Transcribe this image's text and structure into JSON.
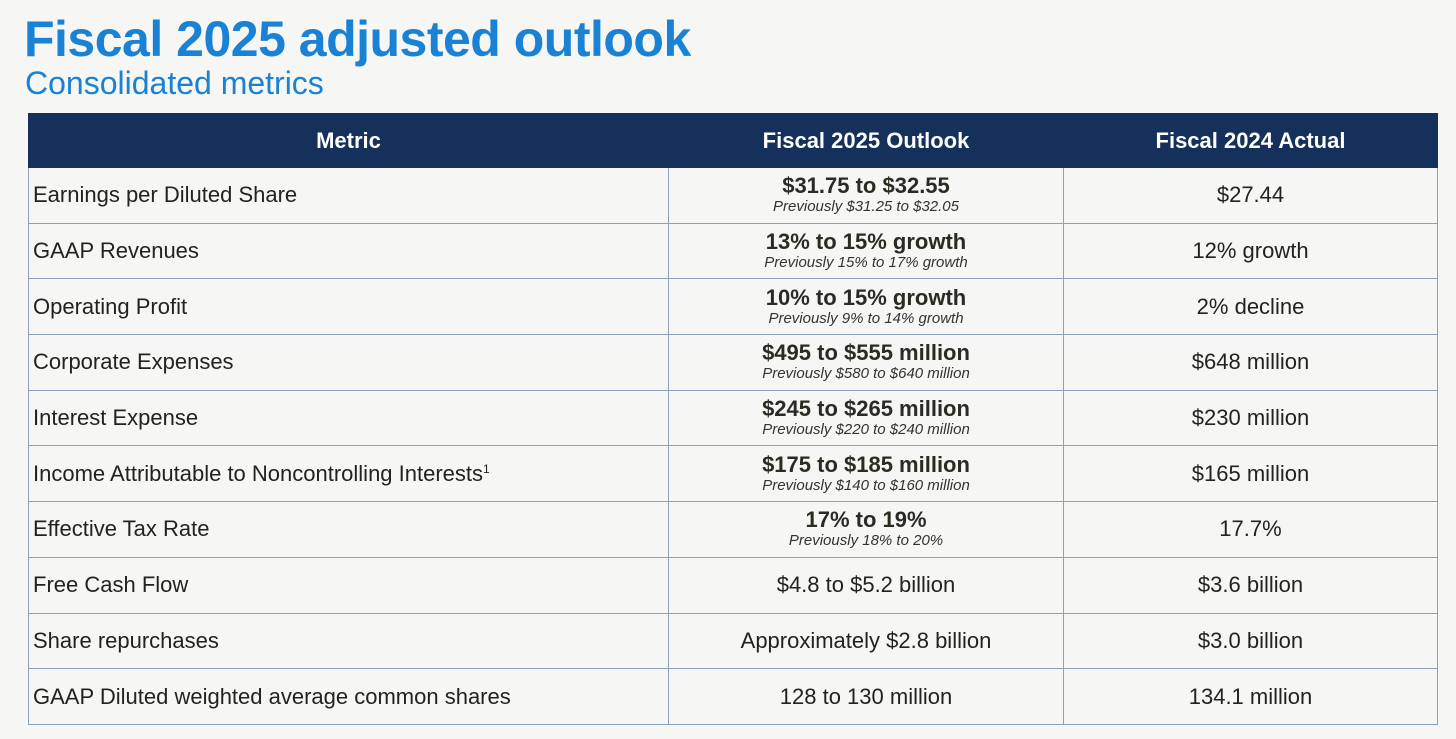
{
  "title": "Fiscal 2025 adjusted outlook",
  "subtitle": "Consolidated metrics",
  "table": {
    "headers": [
      "Metric",
      "Fiscal 2025 Outlook",
      "Fiscal 2024 Actual"
    ],
    "rows": [
      {
        "metric": "Earnings per Diluted Share",
        "footnote": "",
        "outlook": "$31.75 to $32.55",
        "previous": "Previously $31.25 to $32.05",
        "actual": "$27.44"
      },
      {
        "metric": "GAAP Revenues",
        "footnote": "",
        "outlook": "13% to 15% growth",
        "previous": "Previously 15% to 17% growth",
        "actual": "12% growth"
      },
      {
        "metric": "Operating Profit",
        "footnote": "",
        "outlook": "10% to 15% growth",
        "previous": "Previously 9% to 14% growth",
        "actual": "2% decline"
      },
      {
        "metric": "Corporate Expenses",
        "footnote": "",
        "outlook": "$495 to $555 million",
        "previous": "Previously $580 to $640 million",
        "actual": "$648 million"
      },
      {
        "metric": "Interest Expense",
        "footnote": "",
        "outlook": "$245 to $265 million",
        "previous": "Previously $220 to $240 million",
        "actual": "$230 million"
      },
      {
        "metric": "Income Attributable to Noncontrolling Interests",
        "footnote": "1",
        "outlook": "$175 to $185 million",
        "previous": "Previously $140 to $160 million",
        "actual": "$165 million"
      },
      {
        "metric": "Effective Tax Rate",
        "footnote": "",
        "outlook": "17% to 19%",
        "previous": "Previously 18% to 20%",
        "actual": "17.7%"
      },
      {
        "metric": "Free Cash Flow",
        "footnote": "",
        "outlook": "$4.8 to $5.2 billion",
        "previous": "",
        "actual": "$3.6 billion"
      },
      {
        "metric": "Share repurchases",
        "footnote": "",
        "outlook": "Approximately $2.8 billion",
        "previous": "",
        "actual": "$3.0 billion"
      },
      {
        "metric": "GAAP Diluted weighted average common shares",
        "footnote": "",
        "outlook": "128 to 130 million",
        "previous": "",
        "actual": "134.1 million"
      }
    ]
  },
  "colors": {
    "title": "#1a82d4",
    "header_bg": "#15305a",
    "header_text": "#ffffff",
    "row_border": "#8aa0bb",
    "background": "#f6f6f4"
  }
}
